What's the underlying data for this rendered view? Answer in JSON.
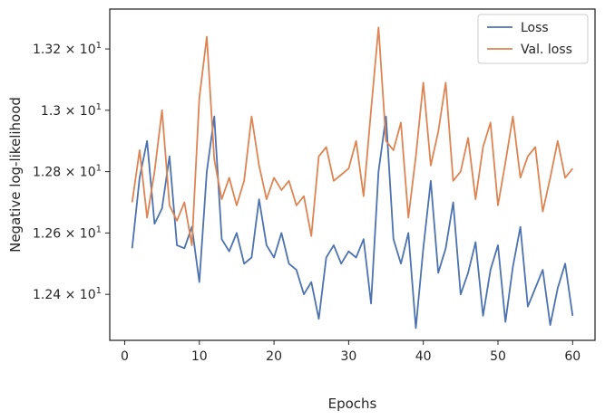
{
  "chart_data": {
    "type": "line",
    "title": "",
    "xlabel": "Epochs",
    "ylabel": "Negative log-likelihood",
    "xlim": [
      -2,
      63
    ],
    "ylim": [
      12.25,
      13.33
    ],
    "xticks": [
      0,
      10,
      20,
      30,
      40,
      50,
      60
    ],
    "yticks": [
      {
        "value": 12.4,
        "mantissa": "1.24"
      },
      {
        "value": 12.6,
        "mantissa": "1.26"
      },
      {
        "value": 12.8,
        "mantissa": "1.28"
      },
      {
        "value": 13.0,
        "mantissa": "1.3"
      },
      {
        "value": 13.2,
        "mantissa": "1.32"
      }
    ],
    "ytick_base": "10",
    "ytick_exponent": "1",
    "ytick_times": "×",
    "grid": false,
    "legend_position": "top-right",
    "x": [
      1,
      2,
      3,
      4,
      5,
      6,
      7,
      8,
      9,
      10,
      11,
      12,
      13,
      14,
      15,
      16,
      17,
      18,
      19,
      20,
      21,
      22,
      23,
      24,
      25,
      26,
      27,
      28,
      29,
      30,
      31,
      32,
      33,
      34,
      35,
      36,
      37,
      38,
      39,
      40,
      41,
      42,
      43,
      44,
      45,
      46,
      47,
      48,
      49,
      50,
      51,
      52,
      53,
      54,
      55,
      56,
      57,
      58,
      59,
      60
    ],
    "series": [
      {
        "name": "Loss",
        "color": "#4c72b0",
        "values": [
          12.55,
          12.78,
          12.9,
          12.63,
          12.68,
          12.85,
          12.56,
          12.55,
          12.62,
          12.44,
          12.8,
          12.98,
          12.58,
          12.54,
          12.6,
          12.5,
          12.52,
          12.71,
          12.56,
          12.52,
          12.6,
          12.5,
          12.48,
          12.4,
          12.44,
          12.32,
          12.52,
          12.56,
          12.5,
          12.54,
          12.52,
          12.58,
          12.37,
          12.8,
          12.98,
          12.58,
          12.5,
          12.6,
          12.29,
          12.55,
          12.77,
          12.47,
          12.55,
          12.7,
          12.4,
          12.47,
          12.57,
          12.33,
          12.48,
          12.56,
          12.31,
          12.49,
          12.62,
          12.36,
          12.42,
          12.48,
          12.3,
          12.42,
          12.5,
          12.33
        ]
      },
      {
        "name": "Val. loss",
        "color": "#dd8452",
        "values": [
          12.7,
          12.87,
          12.65,
          12.8,
          13.0,
          12.69,
          12.64,
          12.7,
          12.56,
          13.04,
          13.24,
          12.84,
          12.71,
          12.78,
          12.69,
          12.77,
          12.98,
          12.82,
          12.71,
          12.78,
          12.74,
          12.77,
          12.69,
          12.72,
          12.59,
          12.85,
          12.88,
          12.77,
          12.79,
          12.81,
          12.9,
          12.72,
          13.0,
          13.27,
          12.9,
          12.87,
          12.96,
          12.65,
          12.85,
          13.09,
          12.82,
          12.93,
          13.09,
          12.77,
          12.8,
          12.91,
          12.71,
          12.88,
          12.96,
          12.69,
          12.83,
          12.98,
          12.78,
          12.85,
          12.88,
          12.67,
          12.78,
          12.9,
          12.78,
          12.81
        ]
      }
    ]
  }
}
